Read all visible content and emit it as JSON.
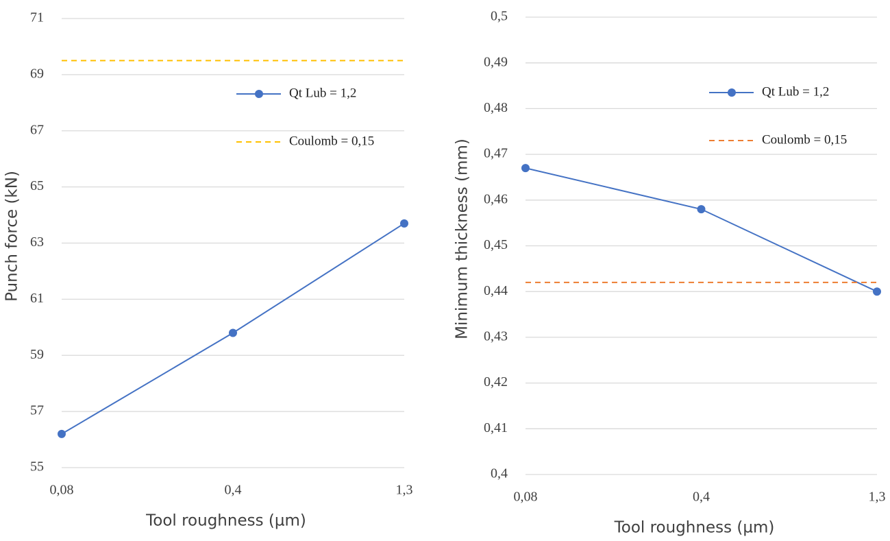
{
  "chart_data": [
    {
      "type": "line",
      "x_label": "Tool roughness (µm)",
      "y_label": "Punch force (kN)",
      "categories": [
        "0,08",
        "0,4",
        "1,3"
      ],
      "series": [
        {
          "name": "Qt Lub = 1,2",
          "color": "#4472c4",
          "style": "solid",
          "marker": true,
          "values": [
            56.2,
            59.8,
            63.7
          ]
        },
        {
          "name": "Coulomb = 0,15",
          "color": "#ffc000",
          "style": "dashed",
          "marker": false,
          "values": [
            69.5,
            69.5,
            69.5
          ]
        }
      ],
      "ylim": [
        55,
        71
      ],
      "yticks": [
        55,
        57,
        59,
        61,
        63,
        65,
        67,
        69,
        71
      ],
      "grid": true,
      "legend": "upper right"
    },
    {
      "type": "line",
      "x_label": "Tool roughness (µm)",
      "y_label": "Minimum thickness (mm)",
      "categories": [
        "0,08",
        "0,4",
        "1,3"
      ],
      "series": [
        {
          "name": "Qt Lub = 1,2",
          "color": "#4472c4",
          "style": "solid",
          "marker": true,
          "values": [
            0.467,
            0.458,
            0.44
          ]
        },
        {
          "name": "Coulomb = 0,15",
          "color": "#ed7d31",
          "style": "dashed",
          "marker": false,
          "values": [
            0.442,
            0.442,
            0.442
          ]
        }
      ],
      "ylim": [
        0.4,
        0.5
      ],
      "yticks": [
        {
          "value": 0.4,
          "label": "0,4"
        },
        {
          "value": 0.41,
          "label": "0,41"
        },
        {
          "value": 0.42,
          "label": "0,42"
        },
        {
          "value": 0.43,
          "label": "0,43"
        },
        {
          "value": 0.44,
          "label": "0,44"
        },
        {
          "value": 0.45,
          "label": "0,45"
        },
        {
          "value": 0.46,
          "label": "0,46"
        },
        {
          "value": 0.47,
          "label": "0,47"
        },
        {
          "value": 0.48,
          "label": "0,48"
        },
        {
          "value": 0.49,
          "label": "0,49"
        },
        {
          "value": 0.5,
          "label": "0,5"
        }
      ],
      "grid": true,
      "legend": "upper right"
    }
  ]
}
